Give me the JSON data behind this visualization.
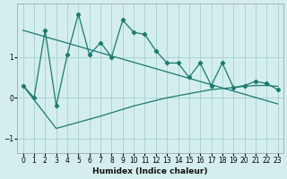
{
  "xlabel": "Humidex (Indice chaleur)",
  "bg_color": "#d4eeee",
  "grid_color": "#aad4d4",
  "line_color": "#1a7a6e",
  "xlim": [
    -0.5,
    23.5
  ],
  "ylim": [
    -1.35,
    2.3
  ],
  "yticks": [
    -1,
    0,
    1
  ],
  "xticks": [
    0,
    1,
    2,
    3,
    4,
    5,
    6,
    7,
    8,
    9,
    10,
    11,
    12,
    13,
    14,
    15,
    16,
    17,
    18,
    19,
    20,
    21,
    22,
    23
  ],
  "line1_x": [
    0,
    1,
    2,
    3,
    4,
    5,
    6,
    7,
    8,
    9,
    10,
    11,
    12,
    13,
    14,
    15,
    16,
    17,
    18,
    19,
    20,
    21,
    22,
    23
  ],
  "line1_y": [
    0.3,
    0.0,
    1.65,
    -0.2,
    1.05,
    2.05,
    1.05,
    1.35,
    1.0,
    1.9,
    1.6,
    1.55,
    1.15,
    0.85,
    0.85,
    0.5,
    0.85,
    0.3,
    0.85,
    0.25,
    0.3,
    0.4,
    0.35,
    0.2
  ],
  "line2_x": [
    0,
    23
  ],
  "line2_y": [
    1.65,
    -0.15
  ],
  "line3_x": [
    0,
    3,
    5,
    7,
    10,
    13,
    15,
    17,
    19,
    20,
    21,
    22,
    23
  ],
  "line3_y": [
    0.3,
    -0.75,
    -0.6,
    -0.45,
    -0.2,
    0.0,
    0.1,
    0.2,
    0.25,
    0.28,
    0.3,
    0.3,
    0.28
  ]
}
